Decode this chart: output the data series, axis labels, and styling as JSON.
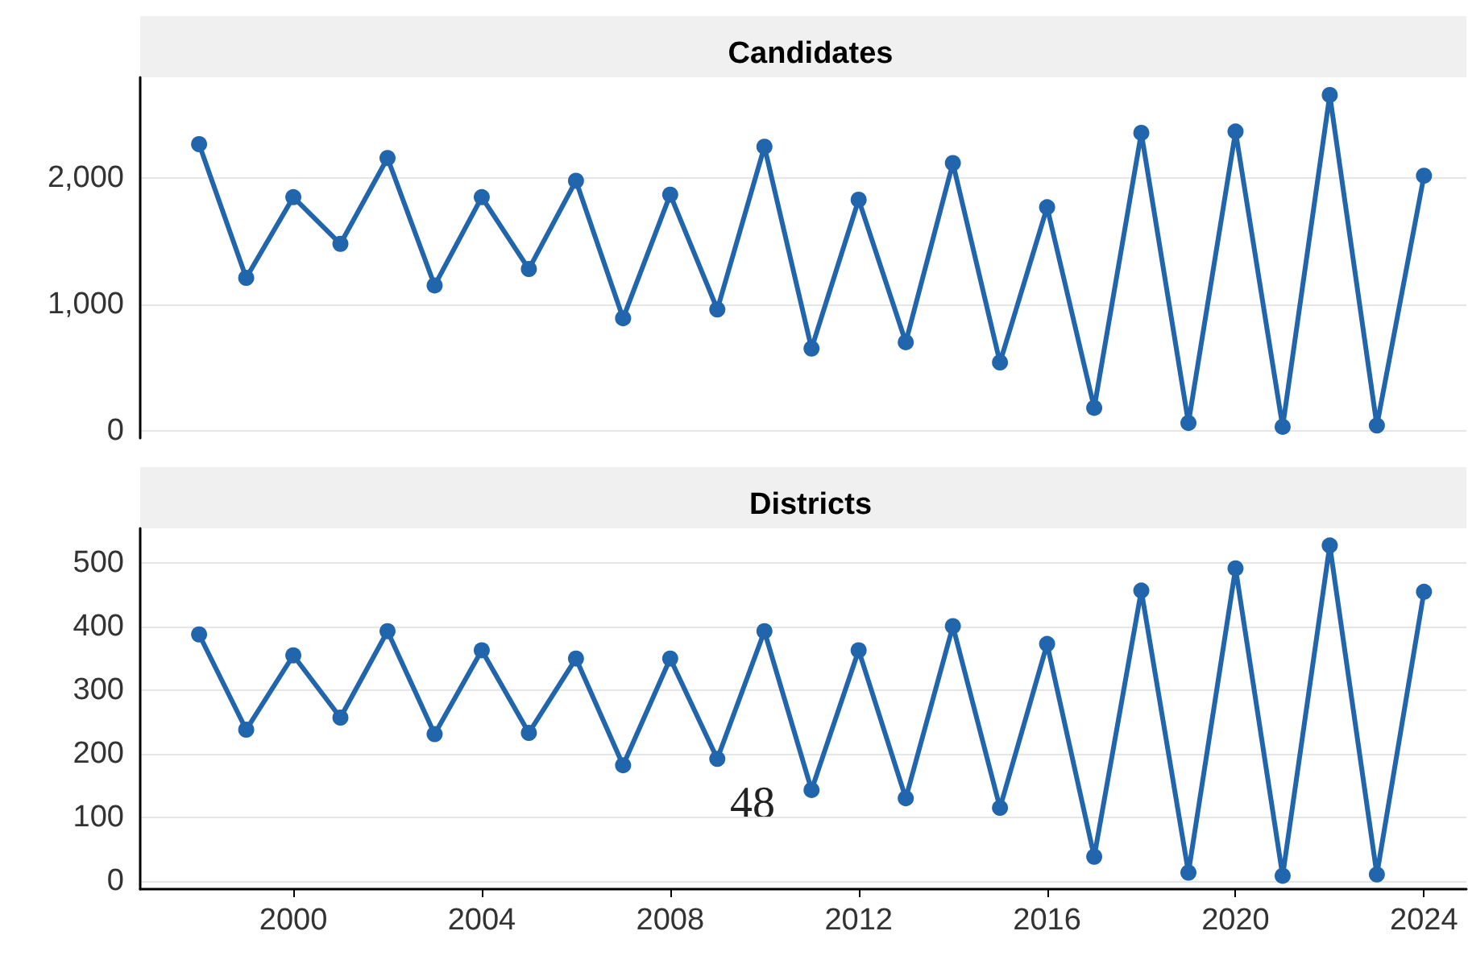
{
  "chart_data": [
    {
      "type": "line",
      "title": "Candidates",
      "x": [
        1998,
        1999,
        2000,
        2001,
        2002,
        2003,
        2004,
        2005,
        2006,
        2007,
        2008,
        2009,
        2010,
        2011,
        2012,
        2013,
        2014,
        2015,
        2016,
        2017,
        2018,
        2019,
        2020,
        2021,
        2022,
        2023,
        2024
      ],
      "series": [
        {
          "color": "#2166ac",
          "values": [
            2270,
            1210,
            1850,
            1480,
            2160,
            1150,
            1850,
            1280,
            1980,
            890,
            1870,
            960,
            2250,
            650,
            1830,
            700,
            2120,
            540,
            1770,
            180,
            2360,
            60,
            2370,
            30,
            2660,
            40,
            2020
          ]
        }
      ],
      "xlim": [
        1996.75,
        2024.9
      ],
      "ylim": [
        -60,
        2800
      ],
      "yticks": [
        0,
        {
          "value": 1000,
          "label": "1,000"
        },
        {
          "value": 2000,
          "label": "2,000"
        }
      ],
      "tick_labels": "y",
      "grid": "y",
      "marker": "circle",
      "line_style": "solid"
    },
    {
      "type": "line",
      "title": "Districts",
      "x": [
        1998,
        1999,
        2000,
        2001,
        2002,
        2003,
        2004,
        2005,
        2006,
        2007,
        2008,
        2009,
        2010,
        2011,
        2012,
        2013,
        2014,
        2015,
        2016,
        2017,
        2018,
        2019,
        2020,
        2021,
        2022,
        2023,
        2024
      ],
      "series": [
        {
          "color": "#2166ac",
          "values": [
            388,
            238,
            355,
            257,
            393,
            231,
            363,
            233,
            350,
            182,
            350,
            192,
            393,
            143,
            363,
            130,
            401,
            115,
            373,
            38,
            457,
            13,
            492,
            8,
            528,
            10,
            455
          ]
        }
      ],
      "xlim": [
        1996.75,
        2024.9
      ],
      "xticks": [
        2000,
        2004,
        2008,
        2012,
        2016,
        2020,
        2024
      ],
      "ylim": [
        -13,
        555
      ],
      "yticks": [
        0,
        100,
        200,
        300,
        400,
        500
      ],
      "grid": "y",
      "marker": "circle",
      "line_style": "solid",
      "annotations": [
        "48"
      ]
    }
  ]
}
